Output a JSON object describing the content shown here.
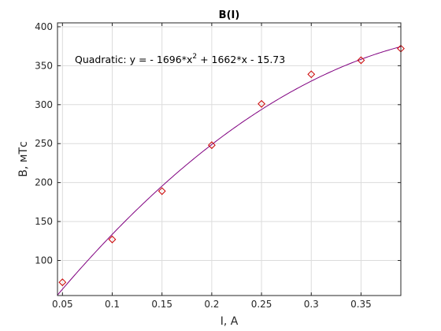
{
  "chart_data": {
    "type": "scatter",
    "title": "B(I)",
    "xlabel": "I, A",
    "ylabel": "B, мТс",
    "xlim": [
      0.045,
      0.39
    ],
    "ylim": [
      55,
      405
    ],
    "x_ticks": [
      0.05,
      0.1,
      0.15,
      0.2,
      0.25,
      0.3,
      0.35
    ],
    "x_tick_labels": [
      "0.05",
      "0.1",
      "0.15",
      "0.2",
      "0.25",
      "0.3",
      "0.35"
    ],
    "y_ticks": [
      100,
      150,
      200,
      250,
      300,
      350,
      400
    ],
    "y_tick_labels": [
      "100",
      "150",
      "200",
      "250",
      "300",
      "350",
      "400"
    ],
    "grid": true,
    "annotation": {
      "prefix": "Quadratic:  y = - 1696*x",
      "superscript": "2",
      "suffix": " + 1662*x - 15.73"
    },
    "fit": {
      "a": -1696,
      "b": 1662,
      "c": -15.73,
      "color": "#800080"
    },
    "series": [
      {
        "marker": "diamond",
        "color": "#cc0000",
        "x": [
          0.05,
          0.1,
          0.15,
          0.2,
          0.25,
          0.3,
          0.35,
          0.39
        ],
        "y": [
          72,
          127,
          189,
          248,
          301,
          339,
          357,
          372
        ]
      }
    ]
  }
}
